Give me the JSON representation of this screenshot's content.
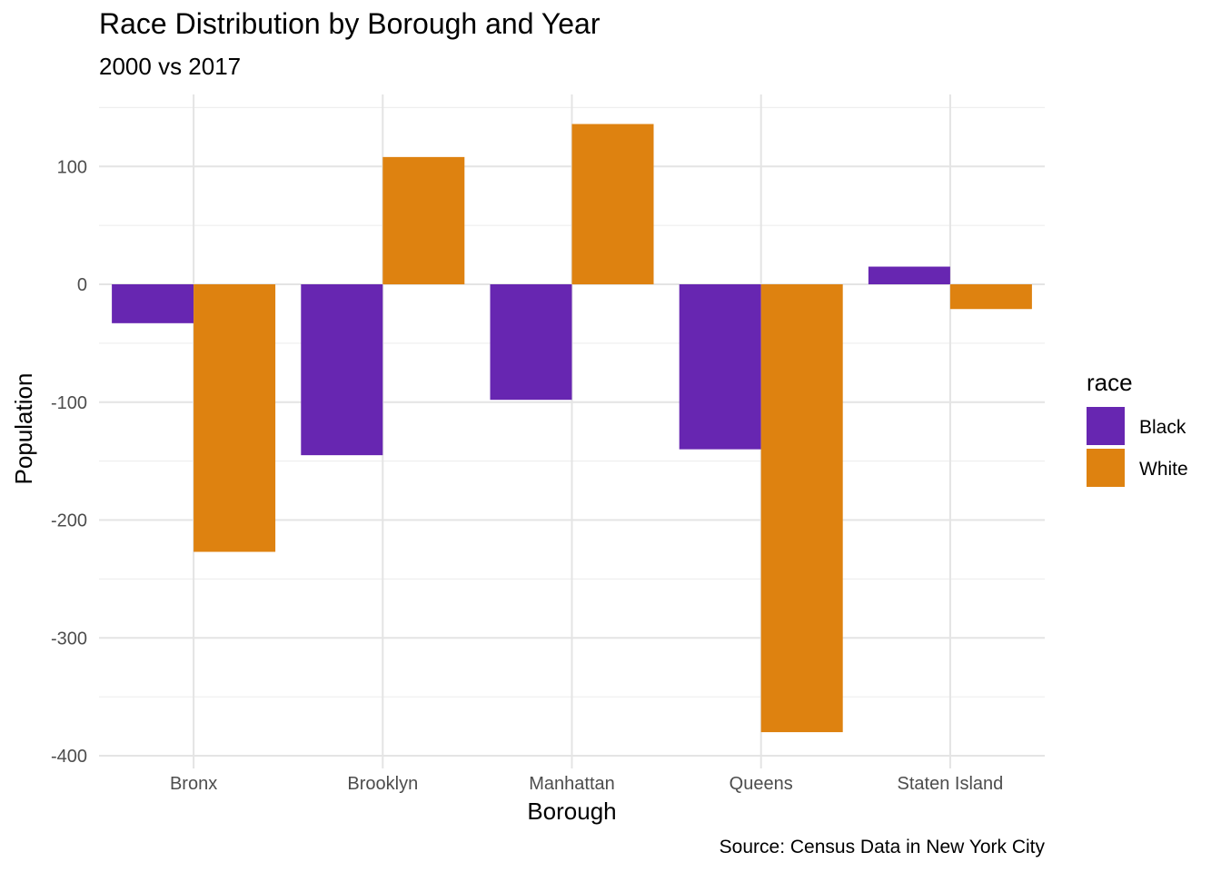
{
  "chart_data": {
    "type": "bar",
    "title": "Race Distribution by Borough and Year",
    "subtitle": "2000 vs 2017",
    "caption": "Source: Census Data in New York City",
    "xlabel": "Borough",
    "ylabel": "Population",
    "categories": [
      "Bronx",
      "Brooklyn",
      "Manhattan",
      "Queens",
      "Staten Island"
    ],
    "series": [
      {
        "name": "Black",
        "color": "#6726B1",
        "values": [
          -33,
          -145,
          -98,
          -140,
          15
        ]
      },
      {
        "name": "White",
        "color": "#DE8210",
        "values": [
          -227,
          108,
          136,
          -380,
          -21
        ]
      }
    ],
    "ylim": [
      -400,
      160
    ],
    "yticks": [
      -400,
      -300,
      -200,
      -100,
      0,
      100
    ],
    "ytick_labels": [
      "-400",
      "-300",
      "-200",
      "-100",
      "0",
      "100"
    ],
    "grid": true,
    "legend": {
      "title": "race",
      "position": "right"
    }
  }
}
